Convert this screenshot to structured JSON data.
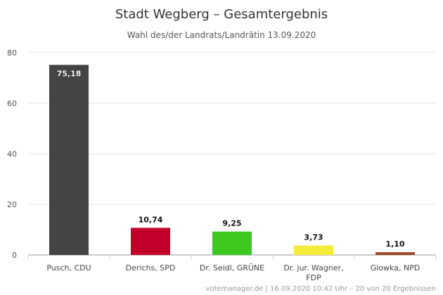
{
  "chart_data": {
    "type": "bar",
    "title": "Stadt Wegberg – Gesamtergebnis",
    "subtitle": "Wahl des/der Landrats/Landrätin 13.09.2020",
    "xlabel": "",
    "ylabel": "",
    "ylim": [
      0,
      80
    ],
    "yticks": [
      "0",
      "20",
      "40",
      "60",
      "80"
    ],
    "grid": true,
    "categories": [
      [
        "Pusch, CDU"
      ],
      [
        "Derichs, SPD"
      ],
      [
        "Dr. Seidl, GRÜNE"
      ],
      [
        "Dr. jur. Wagner,",
        "FDP"
      ],
      [
        "Glowka, NPD"
      ]
    ],
    "values": [
      75.18,
      10.74,
      9.25,
      3.73,
      1.1
    ],
    "value_labels": [
      "75,18",
      "10,74",
      "9,25",
      "3,73",
      "1,10"
    ],
    "colors": [
      "#444444",
      "#c0002a",
      "#3cc81e",
      "#f5ec3a",
      "#9c4a2a"
    ],
    "credit": "votemanager.de | 16.09.2020 10:42 Uhr – 20 von 20 Ergebnissen"
  }
}
